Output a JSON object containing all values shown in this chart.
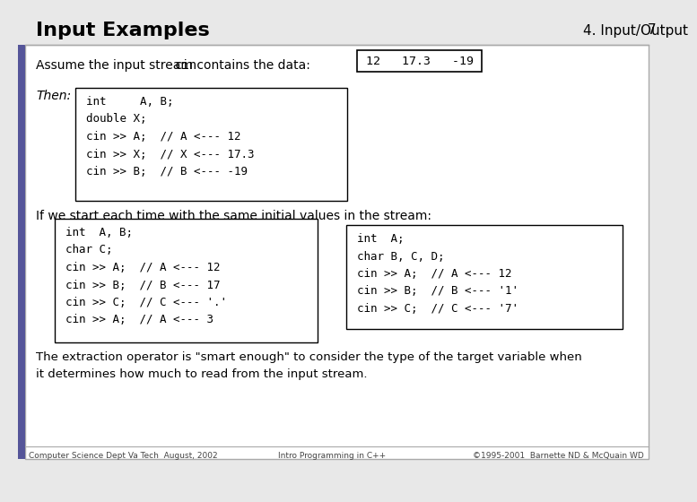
{
  "title": "Input Examples",
  "slide_label": "4. Input/Output",
  "slide_number": "7",
  "bg_color": "#e8e8e8",
  "content_bg": "#f0f0f0",
  "white": "#ffffff",
  "border_color": "#aaaaaa",
  "assume_text1": "Assume the input stream ",
  "assume_cin": "cin",
  "assume_text2": " contains the data:",
  "data_box": "12   17.3   -19",
  "then_label": "Then:",
  "then_code": "int     A, B;\ndouble X;\ncin >> A;  // A <--- 12\ncin >> X;  // X <--- 17.3\ncin >> B;  // B <--- -19",
  "if_text": "If we start each time with the same initial values in the stream:",
  "left_code": "int  A, B;\nchar C;\ncin >> A;  // A <--- 12\ncin >> B;  // B <--- 17\ncin >> C;  // C <--- '.'\ncin >> A;  // A <--- 3",
  "right_code": "int  A;\nchar B, C, D;\ncin >> A;  // A <--- 12\ncin >> B;  // B <--- '1'\ncin >> C;  // C <--- '7'",
  "conclusion": "The extraction operator is \"smart enough\" to consider the type of the target variable when\nit determines how much to read from the input stream.",
  "footer_left": "Computer Science Dept Va Tech  August, 2002",
  "footer_center": "Intro Programming in C++",
  "footer_right": "©1995-2001  Barnette ND & McQuain WD"
}
